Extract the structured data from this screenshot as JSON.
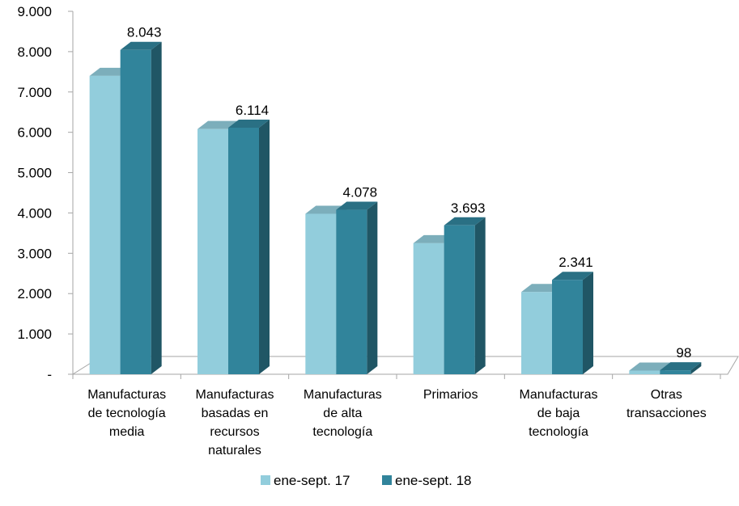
{
  "chart_data": {
    "type": "bar",
    "title": "",
    "xlabel": "",
    "ylabel": "",
    "ylim": [
      0,
      9000
    ],
    "yticks": [
      "-",
      "1.000",
      "2.000",
      "3.000",
      "4.000",
      "5.000",
      "6.000",
      "7.000",
      "8.000",
      "9.000"
    ],
    "ytick_values": [
      0,
      1000,
      2000,
      3000,
      4000,
      5000,
      6000,
      7000,
      8000,
      9000
    ],
    "categories": [
      [
        "Manufacturas",
        "de tecnología",
        "media"
      ],
      [
        "Manufacturas",
        "basadas en",
        "recursos",
        "naturales"
      ],
      [
        "Manufacturas",
        "de alta",
        "tecnología"
      ],
      [
        "Primarios"
      ],
      [
        "Manufacturas",
        "de baja",
        "tecnología"
      ],
      [
        "Otras",
        "transacciones"
      ]
    ],
    "series": [
      {
        "name": "ene-sept. 17",
        "values": [
          7400,
          6080,
          3980,
          3250,
          2040,
          90
        ],
        "color": "#92cddc"
      },
      {
        "name": "ene-sept. 18",
        "values": [
          8043,
          6114,
          4078,
          3693,
          2341,
          98
        ],
        "color": "#31849b",
        "labels": [
          "8.043",
          "6.114",
          "4.078",
          "3.693",
          "2.341",
          "98"
        ]
      }
    ],
    "grid": false,
    "style": "3d-clustered-column",
    "legend": "bottom"
  }
}
